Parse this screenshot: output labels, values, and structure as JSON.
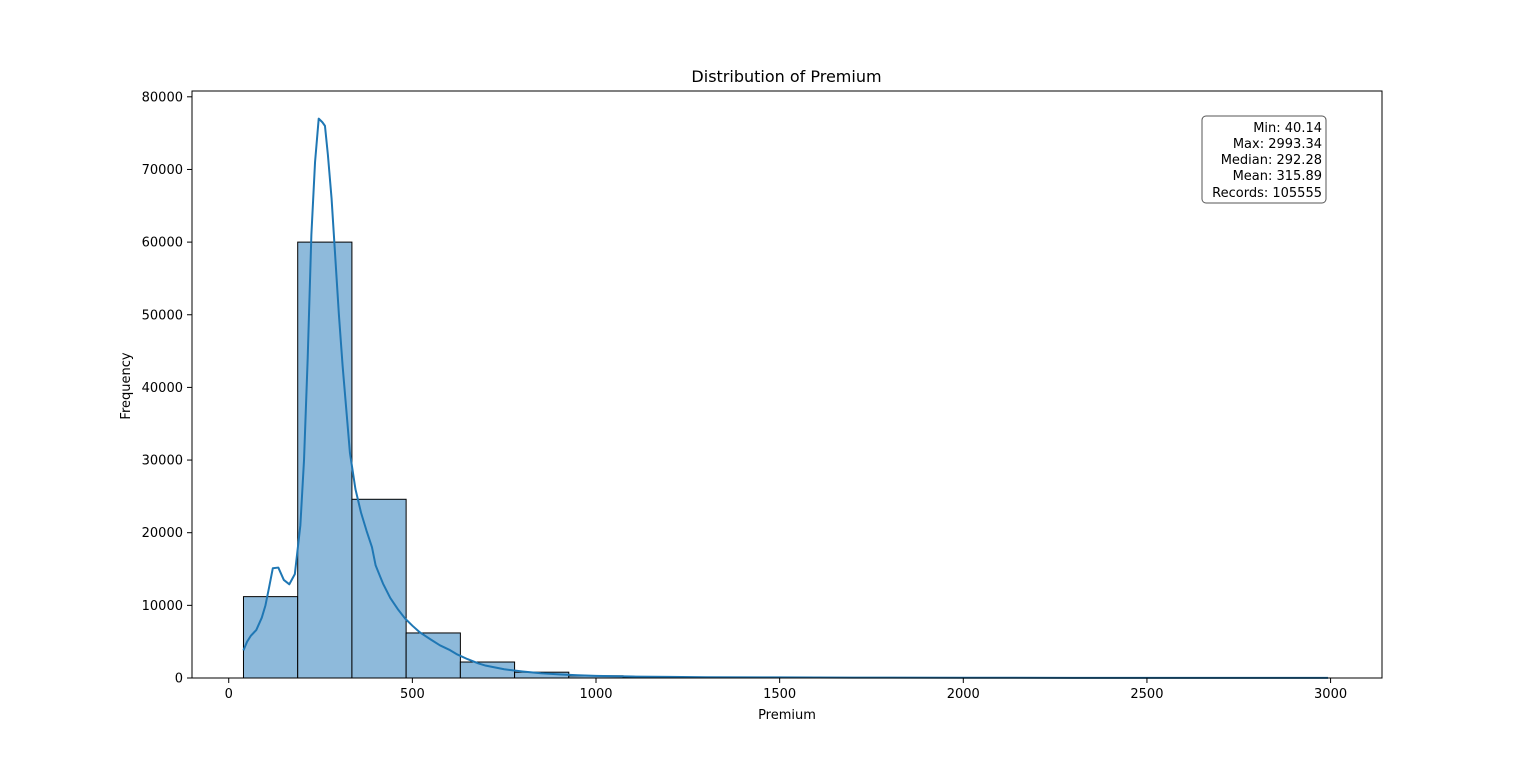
{
  "chart_data": {
    "type": "bar",
    "title": "Distribution of Premium",
    "xlabel": "Premium",
    "ylabel": "Frequency",
    "xlim": [
      -100,
      3140
    ],
    "ylim": [
      0,
      80800
    ],
    "x_ticks": [
      0,
      500,
      1000,
      1500,
      2000,
      2500,
      3000
    ],
    "y_ticks": [
      0,
      10000,
      20000,
      30000,
      40000,
      50000,
      60000,
      70000,
      80000
    ],
    "grid": false,
    "bin_edges": [
      40.14,
      187.8,
      335.4,
      483.0,
      630.7,
      778.3,
      925.9,
      1073.5,
      1221.1,
      1368.7,
      1516.3,
      1663.9,
      1811.6,
      1959.2,
      2106.8,
      2254.4,
      2402.0,
      2549.6,
      2697.2,
      2844.8,
      2993.34
    ],
    "values": [
      11200,
      60000,
      24600,
      6200,
      2200,
      800,
      300,
      120,
      60,
      30,
      15,
      10,
      6,
      4,
      3,
      2,
      1,
      1,
      1,
      1
    ],
    "bar_color": "#8ebadb",
    "bar_edge_color": "#000000",
    "kde_color": "#1f77b4",
    "kde": {
      "x": [
        40,
        50,
        60,
        75,
        90,
        100,
        110,
        120,
        135,
        150,
        165,
        180,
        195,
        205,
        215,
        225,
        235,
        245,
        255,
        262,
        270,
        280,
        290,
        300,
        310,
        320,
        330,
        345,
        360,
        375,
        390,
        400,
        420,
        440,
        460,
        480,
        500,
        520,
        550,
        575,
        600,
        620,
        650,
        680,
        700,
        750,
        800,
        850,
        900,
        950,
        1000,
        1100,
        1200,
        1300,
        1500,
        1700,
        2000,
        2300,
        2600,
        2993
      ],
      "y": [
        3800,
        5000,
        5800,
        6600,
        8300,
        10000,
        12500,
        15100,
        15200,
        13500,
        12900,
        14300,
        21000,
        30000,
        44000,
        61000,
        71000,
        77000,
        76500,
        76000,
        72000,
        66000,
        58000,
        50000,
        43000,
        37000,
        31000,
        26000,
        22800,
        20300,
        18000,
        15500,
        13000,
        11000,
        9500,
        8200,
        7200,
        6300,
        5300,
        4500,
        3900,
        3300,
        2600,
        2000,
        1700,
        1200,
        900,
        650,
        500,
        380,
        300,
        200,
        150,
        110,
        80,
        55,
        35,
        25,
        20,
        15
      ]
    },
    "stats_box": {
      "lines": [
        "Min: 40.14",
        "Max: 2993.34",
        "Median: 292.28",
        "Mean: 315.89",
        "Records: 105555"
      ],
      "placement": "top-right"
    }
  }
}
